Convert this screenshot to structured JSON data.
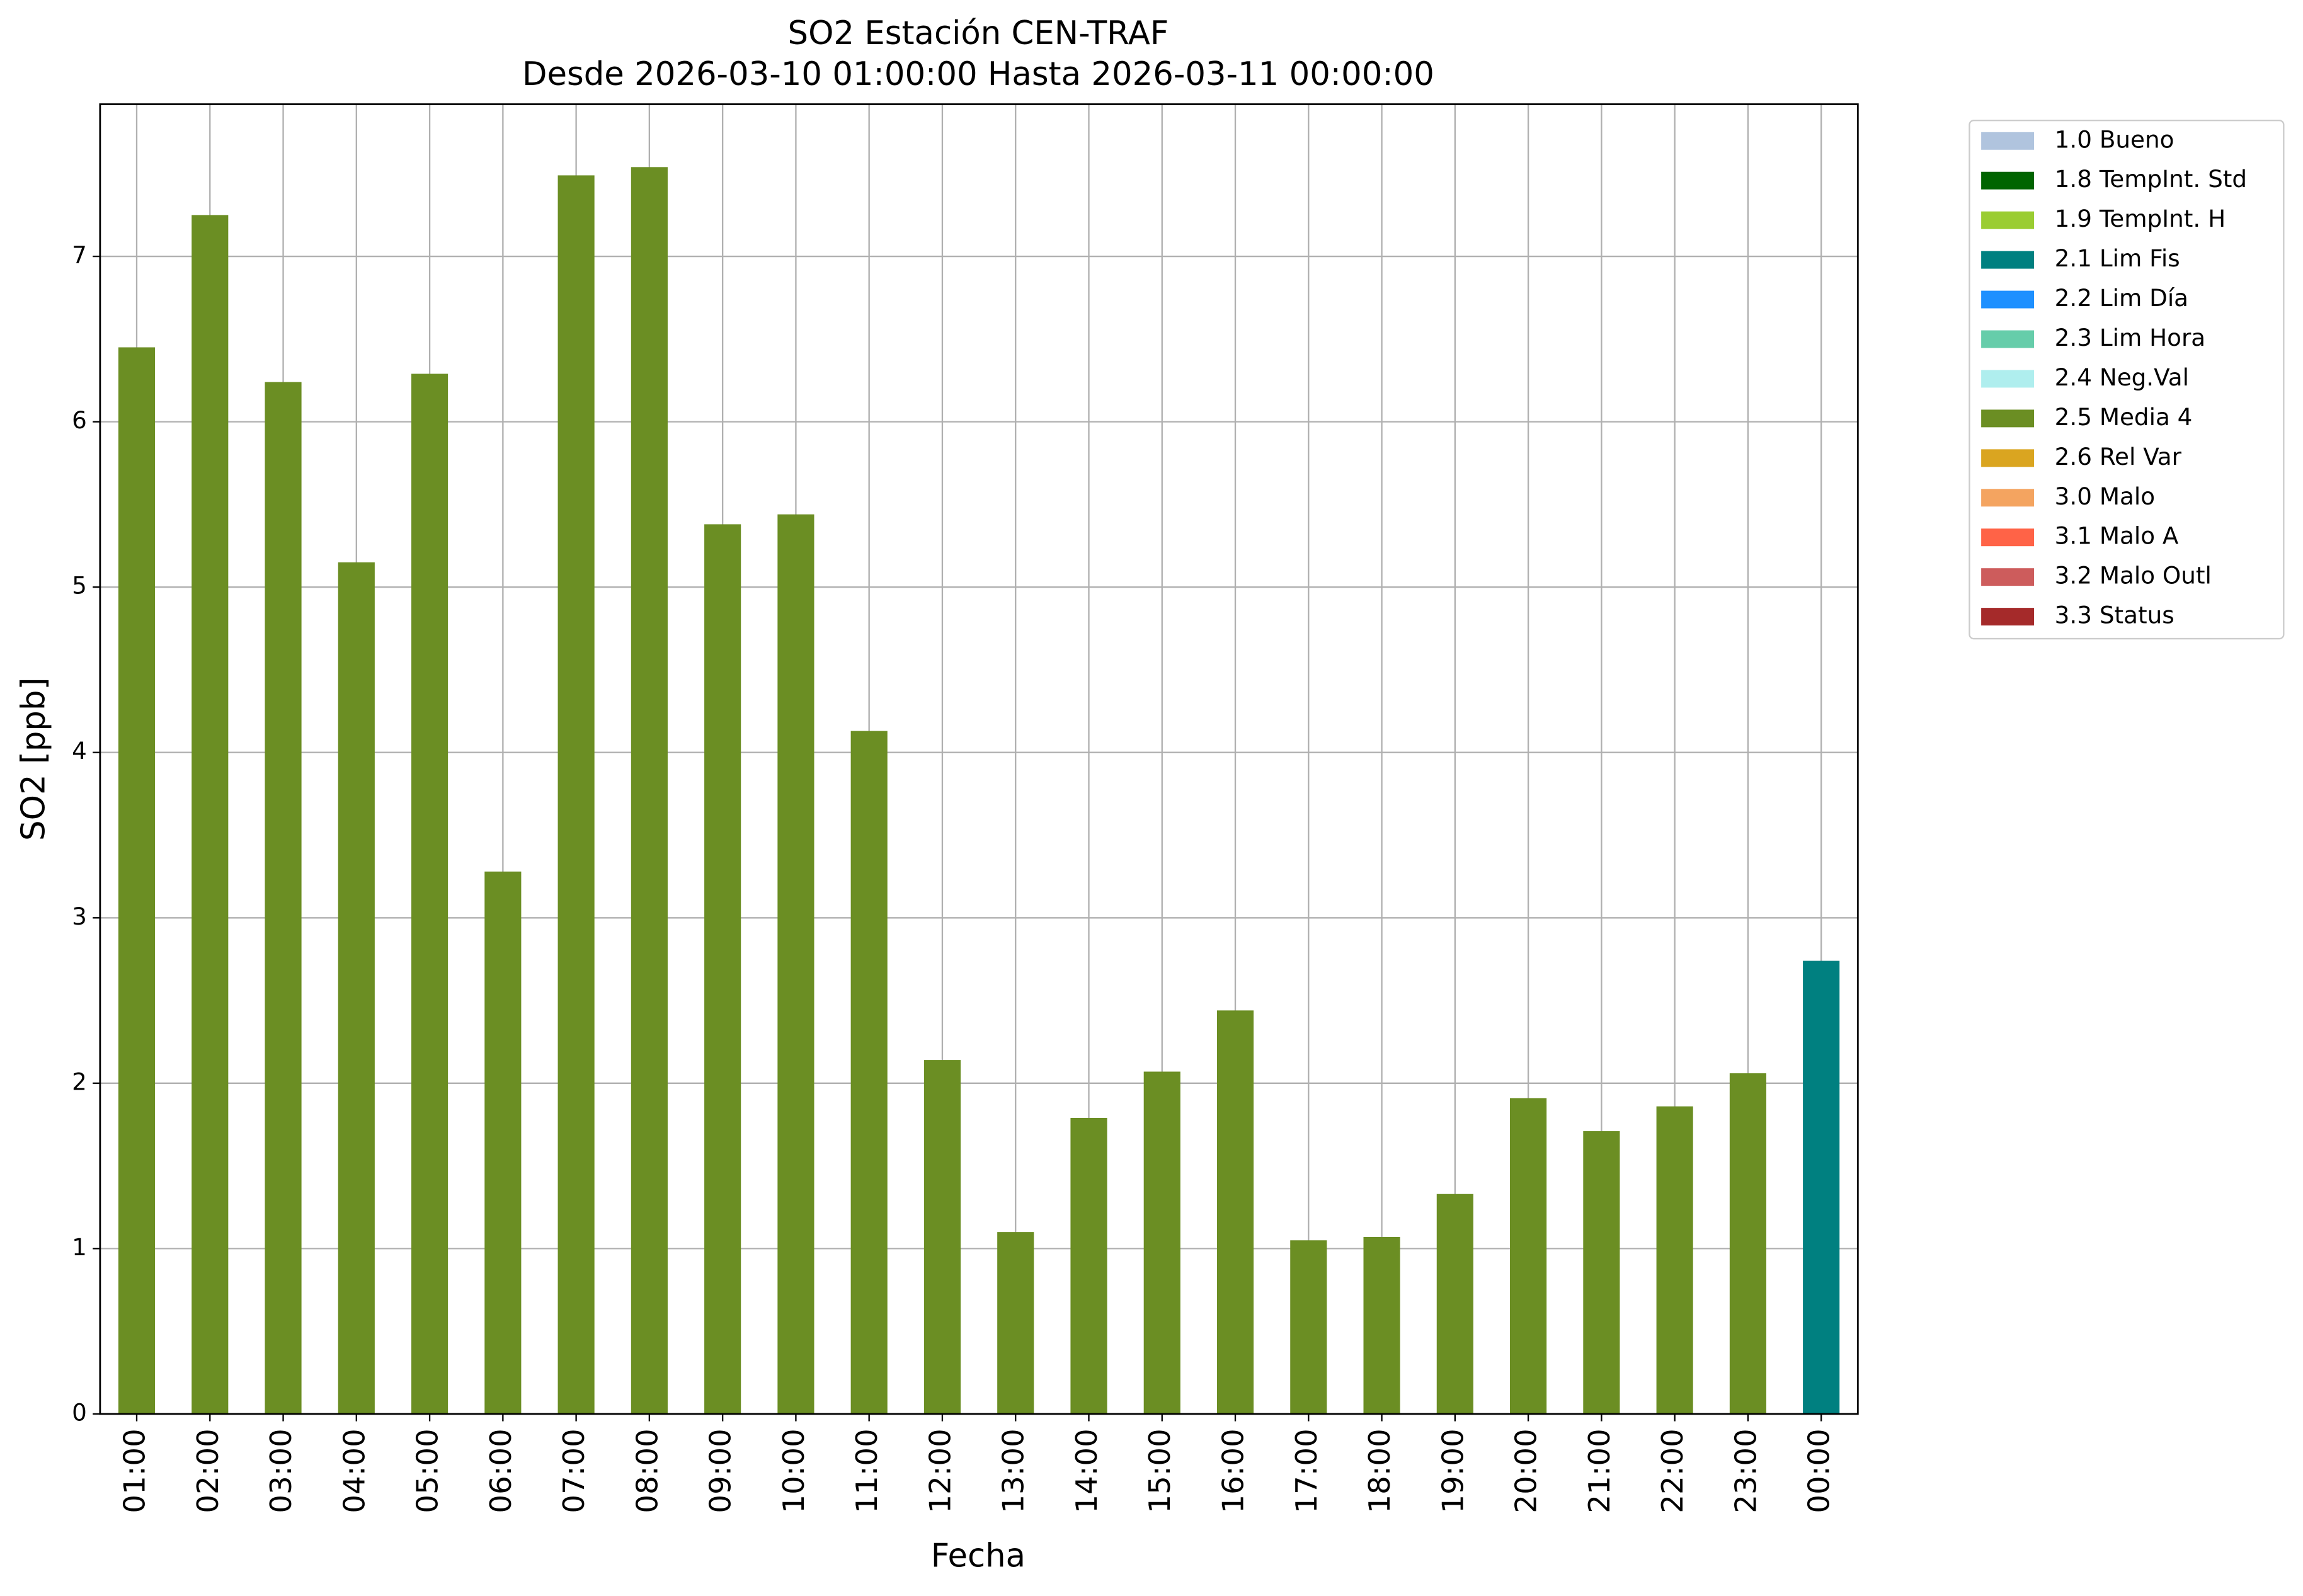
{
  "chart_data": {
    "type": "bar",
    "title": "SO2 Estación CEN-TRAF",
    "subtitle": "Desde 2026-03-10 01:00:00 Hasta 2026-03-11 00:00:00",
    "x_label": "Fecha",
    "y_label": "SO2 [ppb]",
    "categories": [
      "01:00",
      "02:00",
      "03:00",
      "04:00",
      "05:00",
      "06:00",
      "07:00",
      "08:00",
      "09:00",
      "10:00",
      "11:00",
      "12:00",
      "13:00",
      "14:00",
      "15:00",
      "16:00",
      "17:00",
      "18:00",
      "19:00",
      "20:00",
      "21:00",
      "22:00",
      "23:00",
      "00:00"
    ],
    "values": [
      6.45,
      7.25,
      6.24,
      5.15,
      6.29,
      3.28,
      7.49,
      7.54,
      5.38,
      5.44,
      4.13,
      2.14,
      1.1,
      1.79,
      2.07,
      2.44,
      1.05,
      1.07,
      1.33,
      1.91,
      1.71,
      1.86,
      2.06,
      2.74
    ],
    "bar_colors": [
      "#6b8e23",
      "#6b8e23",
      "#6b8e23",
      "#6b8e23",
      "#6b8e23",
      "#6b8e23",
      "#6b8e23",
      "#6b8e23",
      "#6b8e23",
      "#6b8e23",
      "#6b8e23",
      "#6b8e23",
      "#6b8e23",
      "#6b8e23",
      "#6b8e23",
      "#6b8e23",
      "#6b8e23",
      "#6b8e23",
      "#6b8e23",
      "#6b8e23",
      "#6b8e23",
      "#6b8e23",
      "#6b8e23",
      "#008080"
    ],
    "ylim": [
      0,
      7.92
    ],
    "yticks": [
      0,
      1,
      2,
      3,
      4,
      5,
      6,
      7
    ],
    "grid": true,
    "legend_position": "outside-right",
    "legend": [
      {
        "label": "1.0 Bueno",
        "color": "#b0c4de"
      },
      {
        "label": "1.8 TempInt. Std",
        "color": "#006400"
      },
      {
        "label": "1.9 TempInt. H",
        "color": "#9acd32"
      },
      {
        "label": "2.1 Lim Fis",
        "color": "#008080"
      },
      {
        "label": "2.2 Lim Día",
        "color": "#1e90ff"
      },
      {
        "label": "2.3 Lim Hora",
        "color": "#66cdaa"
      },
      {
        "label": "2.4 Neg.Val",
        "color": "#afeeee"
      },
      {
        "label": "2.5 Media 4",
        "color": "#6b8e23"
      },
      {
        "label": "2.6 Rel Var",
        "color": "#daa520"
      },
      {
        "label": "3.0 Malo",
        "color": "#f4a460"
      },
      {
        "label": "3.1 Malo A",
        "color": "#ff6347"
      },
      {
        "label": "3.2 Malo Outl",
        "color": "#cd5c5c"
      },
      {
        "label": "3.3 Status",
        "color": "#a52a2a"
      }
    ]
  }
}
